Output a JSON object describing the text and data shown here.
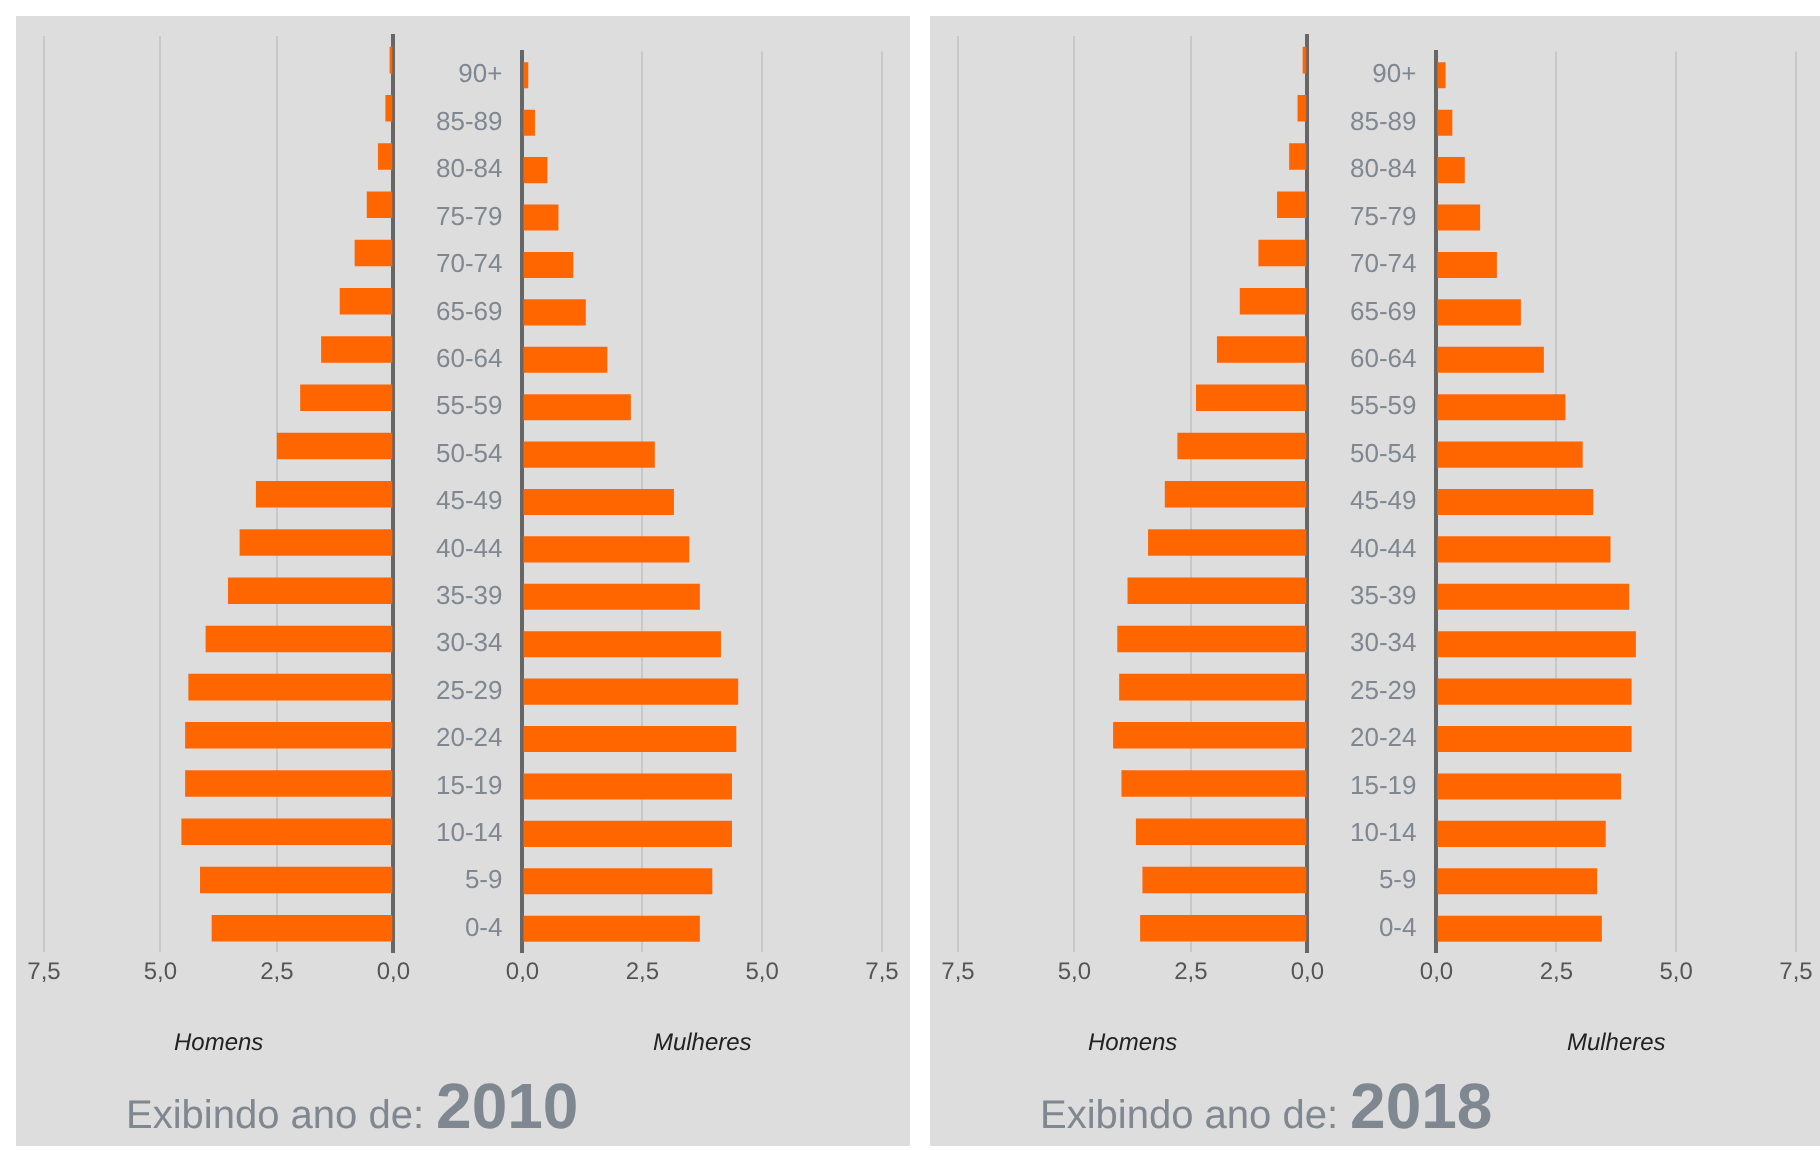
{
  "chart_data": [
    {
      "type": "bar",
      "orientation": "horizontal",
      "categories": [
        null,
        null,
        null,
        null,
        null,
        null,
        null,
        null,
        null,
        null,
        null,
        null,
        null,
        null,
        null,
        null,
        null,
        null,
        null
      ],
      "values": [
        0.08,
        0.17,
        0.33,
        0.57,
        0.83,
        1.15,
        1.55,
        2.0,
        2.5,
        2.95,
        3.3,
        3.55,
        4.03,
        4.4,
        4.47,
        4.47,
        4.55,
        4.15,
        3.9
      ],
      "color": "#ff6600",
      "xlim": [
        7.5,
        0
      ],
      "xticks": [
        {
          "value": 7.5,
          "label": "7,5"
        },
        {
          "value": 5,
          "label": "5,0"
        },
        {
          "value": 2.5,
          "label": "2,5"
        },
        {
          "value": 0,
          "label": "0,0"
        }
      ],
      "xlabel": "Homens",
      "grid": "x",
      "annotations": [
        "Exibindo ano de:",
        "2010"
      ]
    },
    {
      "type": "bar",
      "orientation": "horizontal",
      "categories": [
        "90+",
        "85-89",
        "80-84",
        "75-79",
        "70-74",
        "65-69",
        "60-64",
        "55-59",
        "50-54",
        "45-49",
        "40-44",
        "35-39",
        "30-34",
        "25-29",
        "20-24",
        "15-19",
        "10-14",
        "5-9",
        "0-4"
      ],
      "values": [
        0.12,
        0.26,
        0.52,
        0.75,
        1.06,
        1.32,
        1.77,
        2.26,
        2.76,
        3.16,
        3.48,
        3.7,
        4.14,
        4.5,
        4.46,
        4.37,
        4.37,
        3.96,
        3.7
      ],
      "color": "#ff6600",
      "xlim": [
        0,
        7.5
      ],
      "xticks": [
        {
          "value": 0,
          "label": "0,0"
        },
        {
          "value": 2.5,
          "label": "2,5"
        },
        {
          "value": 5,
          "label": "5,0"
        },
        {
          "value": 7.5,
          "label": "7,5"
        }
      ],
      "xlabel": "Mulheres",
      "grid": "x"
    },
    {
      "type": "bar",
      "orientation": "horizontal",
      "categories": [
        null,
        null,
        null,
        null,
        null,
        null,
        null,
        null,
        null,
        null,
        null,
        null,
        null,
        null,
        null,
        null,
        null,
        null,
        null
      ],
      "values": [
        0.1,
        0.21,
        0.39,
        0.65,
        1.05,
        1.45,
        1.94,
        2.39,
        2.79,
        3.06,
        3.42,
        3.86,
        4.08,
        4.04,
        4.17,
        3.99,
        3.68,
        3.54,
        3.59
      ],
      "color": "#ff6600",
      "xlim": [
        7.5,
        0
      ],
      "xticks": [
        {
          "value": 7.5,
          "label": "7,5"
        },
        {
          "value": 5,
          "label": "5,0"
        },
        {
          "value": 2.5,
          "label": "2,5"
        },
        {
          "value": 0,
          "label": "0,0"
        }
      ],
      "xlabel": "Homens",
      "grid": "x",
      "annotations": [
        "Exibindo ano de:",
        "2018"
      ]
    },
    {
      "type": "bar",
      "orientation": "horizontal",
      "categories": [
        "90+",
        "85-89",
        "80-84",
        "75-79",
        "70-74",
        "65-69",
        "60-64",
        "55-59",
        "50-54",
        "45-49",
        "40-44",
        "35-39",
        "30-34",
        "25-29",
        "20-24",
        "15-19",
        "10-14",
        "5-9",
        "0-4"
      ],
      "values": [
        0.19,
        0.33,
        0.59,
        0.91,
        1.26,
        1.76,
        2.24,
        2.69,
        3.05,
        3.27,
        3.63,
        4.02,
        4.16,
        4.07,
        4.07,
        3.85,
        3.53,
        3.35,
        3.45
      ],
      "color": "#ff6600",
      "xlim": [
        0,
        7.5
      ],
      "xticks": [
        {
          "value": 0,
          "label": "0,0"
        },
        {
          "value": 2.5,
          "label": "2,5"
        },
        {
          "value": 5,
          "label": "5,0"
        },
        {
          "value": 7.5,
          "label": "7,5"
        }
      ],
      "xlabel": "Mulheres",
      "grid": "x"
    }
  ]
}
